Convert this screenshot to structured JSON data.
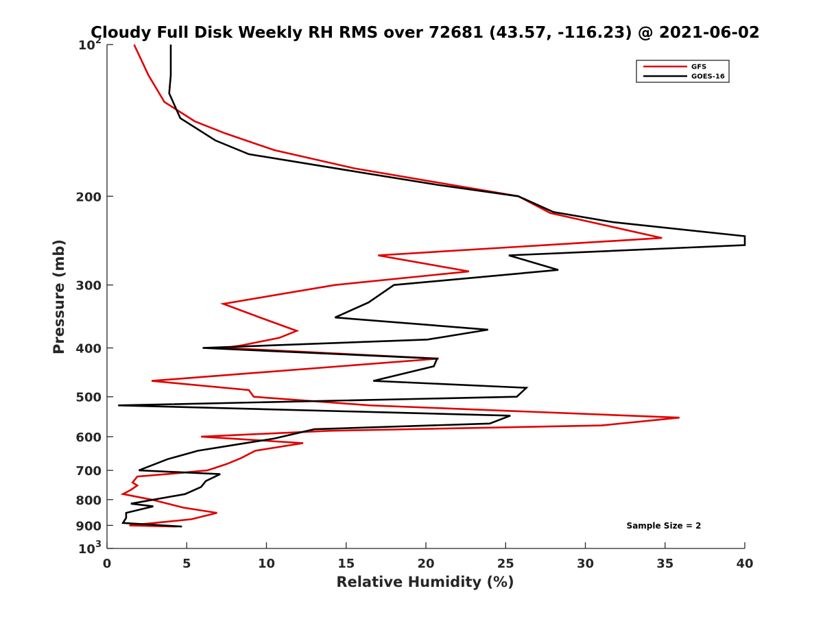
{
  "chart_data": {
    "type": "line",
    "title": "Cloudy Full Disk Weekly RH RMS over 72681 (43.57, -116.23) @ 2021-06-02",
    "xlabel": "Relative Humidity (%)",
    "ylabel": "Pressure (mb)",
    "xlim": [
      0,
      40
    ],
    "ylim": [
      100,
      1000
    ],
    "y_scale": "log",
    "y_reversed": true,
    "grid": false,
    "legend_position": "top-right",
    "x_ticks": [
      0,
      5,
      10,
      15,
      20,
      25,
      30,
      35,
      40
    ],
    "y_ticks": [
      {
        "value": 100,
        "base": "10",
        "exp": "2"
      },
      {
        "value": 200,
        "label": "200"
      },
      {
        "value": 300,
        "label": "300"
      },
      {
        "value": 400,
        "label": "400"
      },
      {
        "value": 500,
        "label": "500"
      },
      {
        "value": 600,
        "label": "600"
      },
      {
        "value": 700,
        "label": "700"
      },
      {
        "value": 800,
        "label": "800"
      },
      {
        "value": 900,
        "label": "900"
      },
      {
        "value": 1000,
        "base": "10",
        "exp": "3"
      }
    ],
    "annotation": "Sample Size = 2",
    "series": [
      {
        "name": "GFS",
        "color": "#e00000",
        "points": [
          [
            1.7,
            100
          ],
          [
            2.6,
            115
          ],
          [
            3.6,
            130
          ],
          [
            5.5,
            142
          ],
          [
            7.4,
            150
          ],
          [
            10.5,
            162
          ],
          [
            15.5,
            176
          ],
          [
            20.8,
            188
          ],
          [
            25.8,
            200
          ],
          [
            27.8,
            216
          ],
          [
            34.8,
            242
          ],
          [
            17.0,
            262
          ],
          [
            22.7,
            282
          ],
          [
            14.3,
            300
          ],
          [
            7.3,
            327
          ],
          [
            9.8,
            350
          ],
          [
            11.9,
            370
          ],
          [
            10.8,
            382
          ],
          [
            8.5,
            395
          ],
          [
            7.4,
            400
          ],
          [
            20.8,
            420
          ],
          [
            2.8,
            465
          ],
          [
            8.9,
            485
          ],
          [
            9.2,
            500
          ],
          [
            16.5,
            520
          ],
          [
            35.9,
            550
          ],
          [
            31.0,
            570
          ],
          [
            14.0,
            584
          ],
          [
            5.9,
            600
          ],
          [
            12.3,
            618
          ],
          [
            9.3,
            640
          ],
          [
            8.4,
            662
          ],
          [
            7.5,
            680
          ],
          [
            6.3,
            700
          ],
          [
            4.2,
            710
          ],
          [
            1.9,
            720
          ],
          [
            1.6,
            740
          ],
          [
            1.9,
            750
          ],
          [
            1.5,
            765
          ],
          [
            1.0,
            780
          ],
          [
            2.8,
            800
          ],
          [
            4.8,
            830
          ],
          [
            6.9,
            850
          ],
          [
            5.3,
            875
          ],
          [
            1.4,
            900
          ],
          [
            4.4,
            905
          ]
        ]
      },
      {
        "name": "GOES-16",
        "color": "#000000",
        "points": [
          [
            4.0,
            100
          ],
          [
            4.0,
            115
          ],
          [
            3.9,
            125
          ],
          [
            4.6,
            140
          ],
          [
            6.8,
            155
          ],
          [
            8.9,
            165
          ],
          [
            16.2,
            180
          ],
          [
            20.8,
            190
          ],
          [
            25.8,
            200
          ],
          [
            28.0,
            215
          ],
          [
            31.7,
            225
          ],
          [
            40.0,
            240
          ],
          [
            40.0,
            250
          ],
          [
            25.2,
            262
          ],
          [
            28.3,
            280
          ],
          [
            18.0,
            300
          ],
          [
            16.4,
            325
          ],
          [
            14.3,
            348
          ],
          [
            23.9,
            368
          ],
          [
            20.1,
            385
          ],
          [
            6.0,
            400
          ],
          [
            20.7,
            420
          ],
          [
            20.5,
            435
          ],
          [
            16.7,
            465
          ],
          [
            26.3,
            480
          ],
          [
            25.7,
            500
          ],
          [
            0.7,
            520
          ],
          [
            25.3,
            545
          ],
          [
            24.0,
            565
          ],
          [
            13.0,
            580
          ],
          [
            10.5,
            605
          ],
          [
            5.7,
            640
          ],
          [
            3.8,
            665
          ],
          [
            2.0,
            700
          ],
          [
            7.1,
            712
          ],
          [
            6.2,
            735
          ],
          [
            5.9,
            755
          ],
          [
            4.9,
            780
          ],
          [
            1.5,
            815
          ],
          [
            2.9,
            825
          ],
          [
            1.2,
            850
          ],
          [
            1.2,
            870
          ],
          [
            1.0,
            890
          ],
          [
            4.7,
            905
          ]
        ]
      }
    ]
  }
}
